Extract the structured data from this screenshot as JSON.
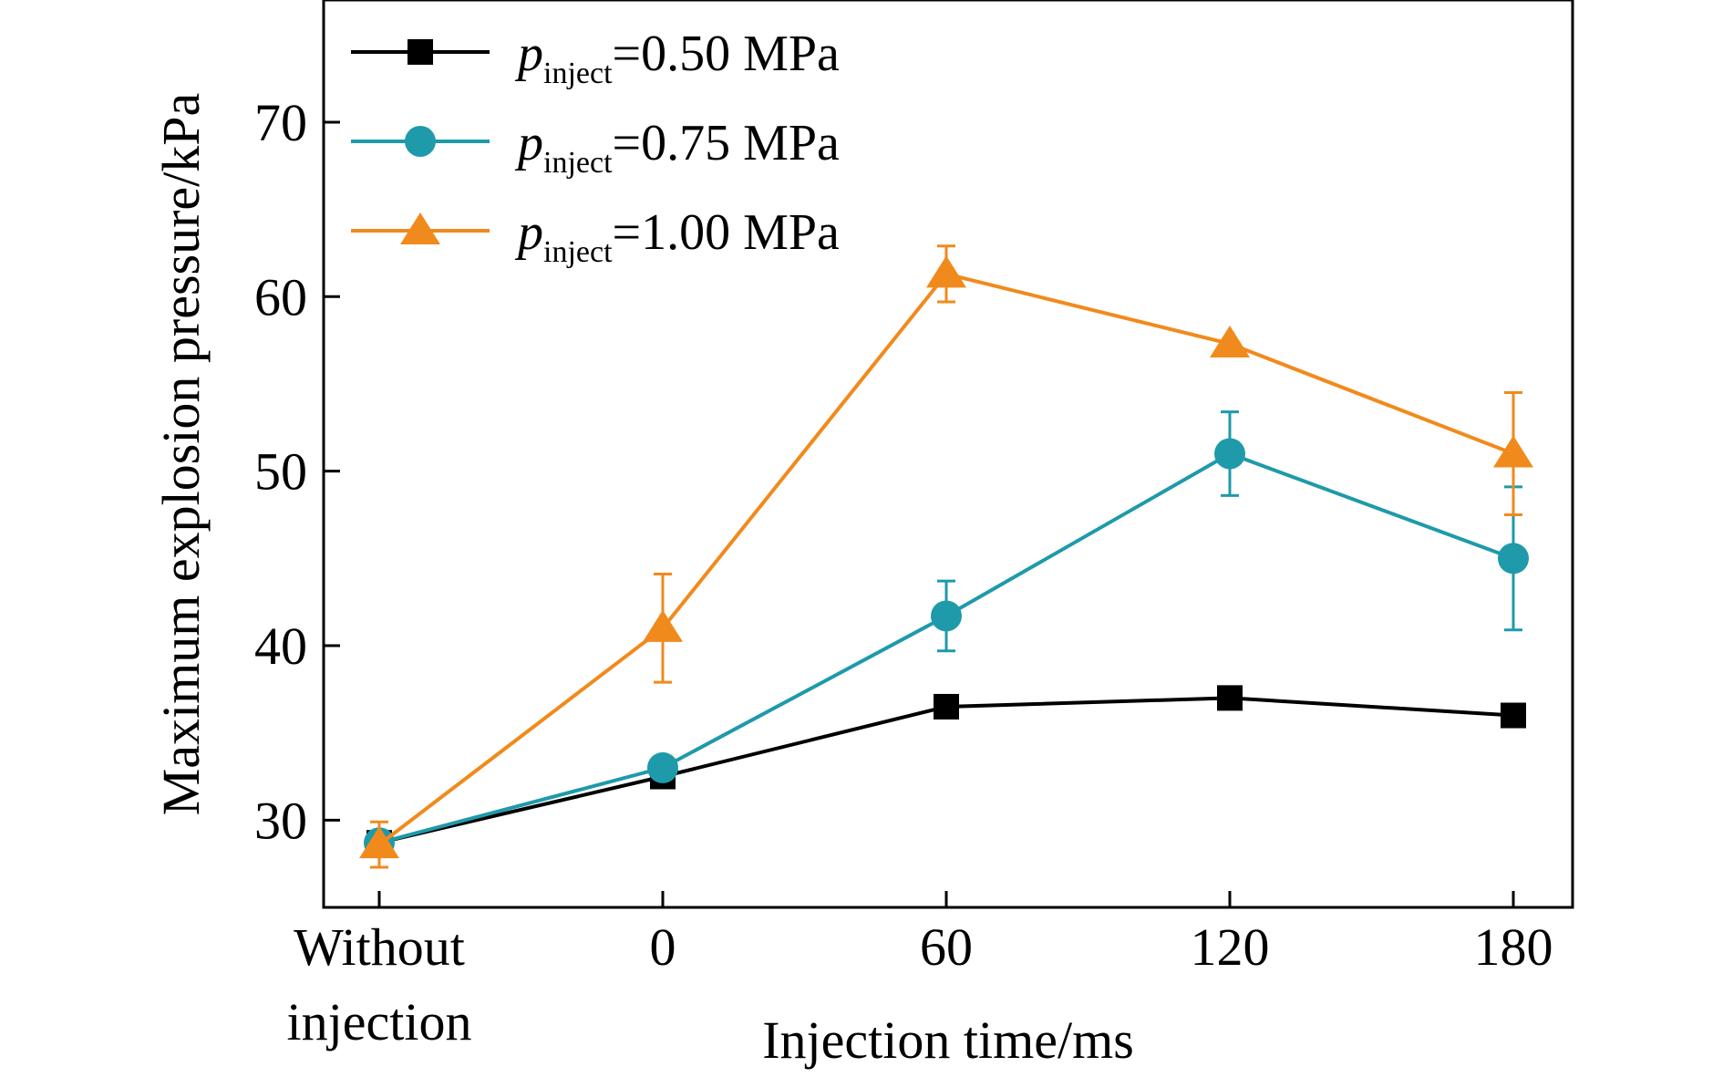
{
  "chart_data": {
    "type": "line",
    "categories": [
      "Without injection",
      "0",
      "60",
      "120",
      "180"
    ],
    "category_labels": [
      [
        "Without",
        "injection"
      ],
      [
        "0"
      ],
      [
        "60"
      ],
      [
        "120"
      ],
      [
        "180"
      ]
    ],
    "xlabel": "Injection time/ms",
    "ylabel": "Maximum explosion pressure/kPa",
    "ylim": [
      25,
      77
    ],
    "yticks": [
      30,
      40,
      50,
      60,
      70
    ],
    "grid": false,
    "legend_position": "top-left",
    "series": [
      {
        "name": "p_inject=0.50 MPa",
        "legend": {
          "symbol": "p",
          "sub": "inject",
          "text": "=0.50 MPa"
        },
        "color": "#000000",
        "marker": "square",
        "values": [
          28.7,
          32.5,
          36.5,
          37.0,
          36.0
        ],
        "errors": [
          0,
          0,
          0,
          0,
          0
        ]
      },
      {
        "name": "p_inject=0.75 MPa",
        "legend": {
          "symbol": "p",
          "sub": "inject",
          "text": "=0.75 MPa"
        },
        "color": "#1e9aaa",
        "marker": "circle",
        "values": [
          28.7,
          33.0,
          41.7,
          51.0,
          45.0
        ],
        "errors": [
          0,
          0,
          2.0,
          2.4,
          4.1
        ]
      },
      {
        "name": "p_inject=1.00 MPa",
        "legend": {
          "symbol": "p",
          "sub": "inject",
          "text": "=1.00 MPa"
        },
        "color": "#f18a1c",
        "marker": "triangle",
        "values": [
          28.6,
          41.0,
          61.3,
          57.3,
          51.0
        ],
        "errors": [
          1.3,
          3.1,
          1.6,
          0,
          3.5
        ]
      }
    ]
  }
}
